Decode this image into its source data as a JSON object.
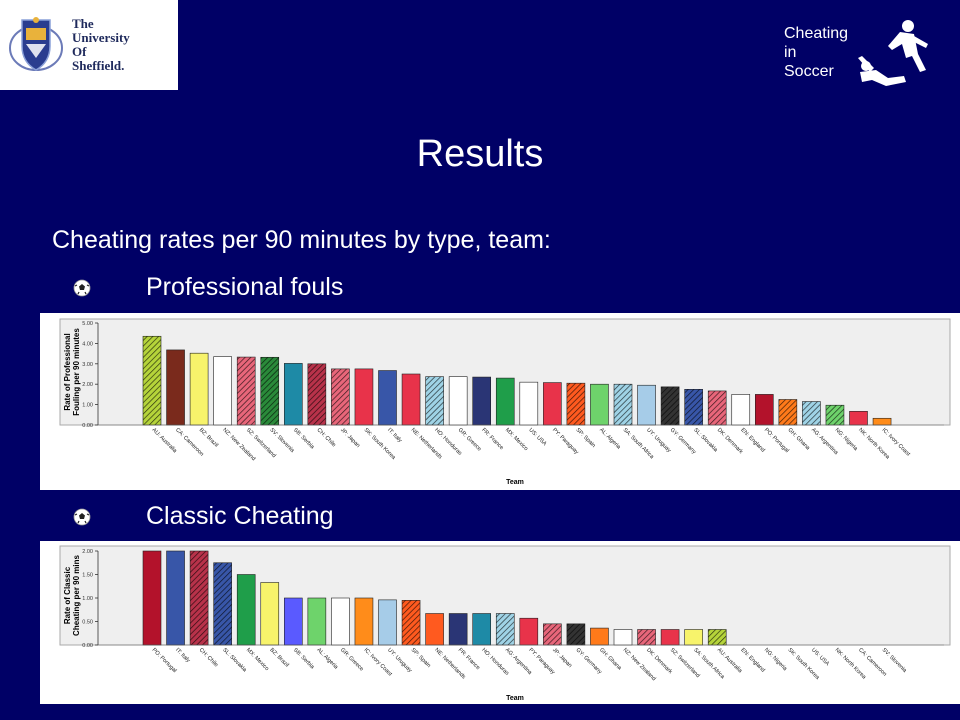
{
  "logo": {
    "lines": [
      "The",
      "University",
      "Of",
      "Sheffield."
    ]
  },
  "brand": {
    "lines": [
      "Cheating",
      "in",
      "Soccer"
    ],
    "figure_icon": "player-falling-icon"
  },
  "slide": {
    "title": "Results",
    "subtitle": "Cheating rates per 90 minutes by type, team:",
    "bullets": [
      "Professional fouls",
      "Classic Cheating"
    ],
    "bullet_icon": "soccer-ball-icon"
  },
  "colors": {
    "background": "#000066",
    "text": "#ffffff",
    "plot_area": "#efefef"
  },
  "chart_data": [
    {
      "type": "bar",
      "title": "",
      "xlabel": "Team",
      "ylabel": "Rate of Professional Fouling per 90 minutes",
      "ylim": [
        0,
        5
      ],
      "yticks": [
        "0.00",
        "1.00",
        "2.00",
        "3.00",
        "4.00",
        "5.00"
      ],
      "grid": false,
      "categories": [
        "AU: Australia",
        "CA: Cameroon",
        "BZ: Brazil",
        "NZ: New Zealand",
        "SZ: Switzerland",
        "SV: Slovenia",
        "SB: Serbia",
        "CH: Chile",
        "JP: Japan",
        "SK: South Korea",
        "IT: Italy",
        "NE: Netherlands",
        "HO: Honduras",
        "GR: Greece",
        "FR: France",
        "MX: Mexico",
        "US: USA",
        "PY: Paraguay",
        "SP: Spain",
        "AL: Algeria",
        "SA: South Africa",
        "UY: Uruguay",
        "GY: Germany",
        "SL: Slovakia",
        "DK: Denmark",
        "EN: England",
        "PO: Portugal",
        "GH: Ghana",
        "AG: Argentina",
        "NG: Nigeria",
        "NK: North Korea",
        "IC: Ivory Coast"
      ],
      "values": [
        4.35,
        3.68,
        3.52,
        3.35,
        3.33,
        3.32,
        3.02,
        3.0,
        2.75,
        2.75,
        2.67,
        2.5,
        2.37,
        2.37,
        2.35,
        2.3,
        2.1,
        2.08,
        2.05,
        2.0,
        2.0,
        1.95,
        1.87,
        1.75,
        1.67,
        1.5,
        1.5,
        1.25,
        1.15,
        0.97,
        0.67,
        0.33
      ],
      "bar_colors": [
        "#b5d43a",
        "#7a2a1c",
        "#f7f36b",
        "#ffffff",
        "#e8667a",
        "#2a8a3a",
        "#1e8aa6",
        "#b8324a",
        "#e8667a",
        "#e8334a",
        "#3856a8",
        "#e8334a",
        "#9fd3e6",
        "#ffffff",
        "#2a3575",
        "#1f9e4a",
        "#ffffff",
        "#e8334a",
        "#ff5a1f",
        "#6ed36b",
        "#9fd3e6",
        "#a6cce8",
        "#333333",
        "#3856a8",
        "#e8667a",
        "#ffffff",
        "#b3122b",
        "#ff7a1a",
        "#9fd3e6",
        "#6ed36b",
        "#e8334a",
        "#ff8c1a"
      ],
      "bar_patterns": [
        "hatch",
        "solid",
        "solid",
        "solid",
        "hatch",
        "hatch",
        "solid",
        "hatch",
        "hatch",
        "solid",
        "solid",
        "solid",
        "hatch",
        "solid",
        "solid",
        "solid",
        "solid",
        "solid",
        "hatch",
        "solid",
        "hatch",
        "solid",
        "hatch",
        "hatch",
        "hatch",
        "solid",
        "solid",
        "hatch",
        "hatch",
        "hatch",
        "solid",
        "solid"
      ]
    },
    {
      "type": "bar",
      "title": "",
      "xlabel": "Team",
      "ylabel": "Rate of Classic Cheating per 90 mins",
      "ylim": [
        0,
        2
      ],
      "yticks": [
        "0.00",
        "0.50",
        "1.00",
        "1.50",
        "2.00"
      ],
      "grid": false,
      "categories": [
        "PO: Portugal",
        "IT: Italy",
        "CH: Chile",
        "SL: Slovakia",
        "MX: Mexico",
        "BZ: Brazil",
        "SB: Serbia",
        "AL: Algeria",
        "GR: Greece",
        "IC: Ivory Coast",
        "UY: Uruguay",
        "SP: Spain",
        "NE: Netherlands",
        "FR: France",
        "HO: Honduras",
        "AG: Argentina",
        "PY: Paraguay",
        "JP: Japan",
        "GY: Germany",
        "GH: Ghana",
        "NZ: New Zealand",
        "DK: Denmark",
        "SZ: Switzerland",
        "SA: South Africa",
        "AU: Australia",
        "EN: England",
        "NG: Nigeria",
        "SK: South Korea",
        "US: USA",
        "NK: North Korea",
        "CA: Cameroon",
        "SV: Slovenia"
      ],
      "values": [
        2.0,
        2.0,
        2.0,
        1.75,
        1.5,
        1.33,
        1.0,
        1.0,
        1.0,
        1.0,
        0.96,
        0.95,
        0.67,
        0.67,
        0.67,
        0.67,
        0.57,
        0.45,
        0.45,
        0.36,
        0.33,
        0.33,
        0.33,
        0.33,
        0.33,
        0.0,
        0.0,
        0.0,
        0.0,
        0.0,
        0.0,
        0.0
      ],
      "bar_colors": [
        "#b3122b",
        "#3856a8",
        "#b8324a",
        "#3856a8",
        "#1f9e4a",
        "#f7f36b",
        "#5a5aff",
        "#6ed36b",
        "#ffffff",
        "#ff8c1a",
        "#a6cce8",
        "#ff5a1f",
        "#ff5a1f",
        "#2a3575",
        "#1e8aa6",
        "#9fd3e6",
        "#e8334a",
        "#e8667a",
        "#333333",
        "#ff7a1a",
        "#ffffff",
        "#e8667a",
        "#e8334a",
        "#f7f36b",
        "#b5d43a",
        "#ffffff",
        "#ffffff",
        "#ffffff",
        "#ffffff",
        "#ffffff",
        "#ffffff",
        "#ffffff"
      ],
      "bar_patterns": [
        "solid",
        "solid",
        "hatch",
        "hatch",
        "solid",
        "solid",
        "solid",
        "solid",
        "solid",
        "solid",
        "solid",
        "hatch",
        "solid",
        "solid",
        "solid",
        "hatch",
        "solid",
        "hatch",
        "hatch",
        "solid",
        "solid",
        "hatch",
        "solid",
        "solid",
        "hatch",
        "solid",
        "solid",
        "solid",
        "solid",
        "solid",
        "solid",
        "solid"
      ]
    }
  ]
}
